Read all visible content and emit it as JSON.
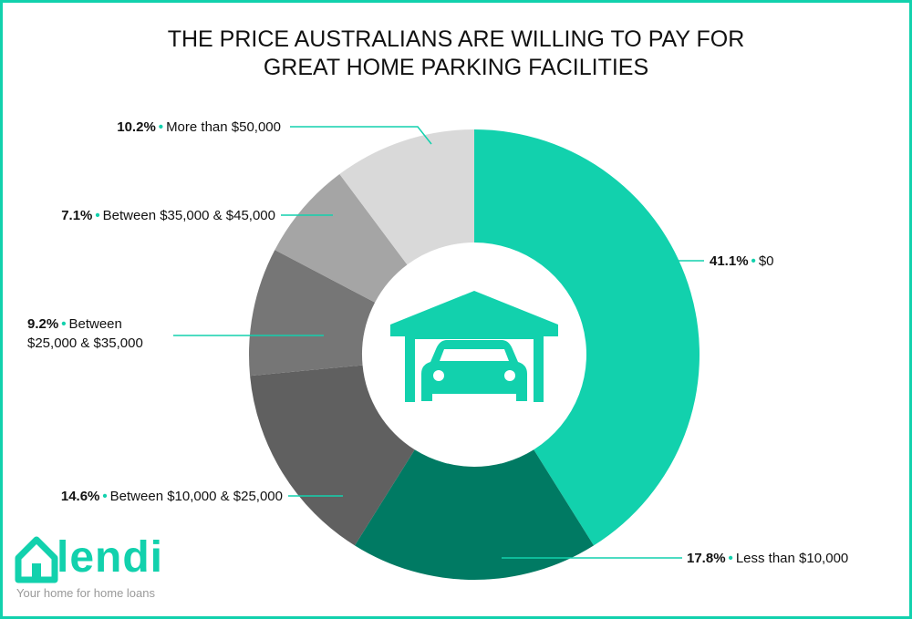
{
  "chart_data": {
    "type": "donut",
    "title": "THE PRICE AUSTRALIANS ARE WILLING TO PAY FOR GREAT HOME PARKING FACILITIES",
    "categories": [
      "$0",
      "Less than $10,000",
      "Between $10,000 & $25,000",
      "Between $25,000 & $35,000",
      "Between $35,000 & $45,000",
      "More than $50,000"
    ],
    "values": [
      41.1,
      17.8,
      14.6,
      9.2,
      7.1,
      10.2
    ],
    "value_labels": [
      "41.1%",
      "17.8%",
      "14.6%",
      "9.2%",
      "7.1%",
      "10.2%"
    ],
    "colors": [
      "#12d1ad",
      "#007a63",
      "#606060",
      "#767676",
      "#a5a5a5",
      "#d9d9d9"
    ]
  },
  "branding": {
    "logo": "lendi",
    "tagline": "Your home for home loans"
  }
}
